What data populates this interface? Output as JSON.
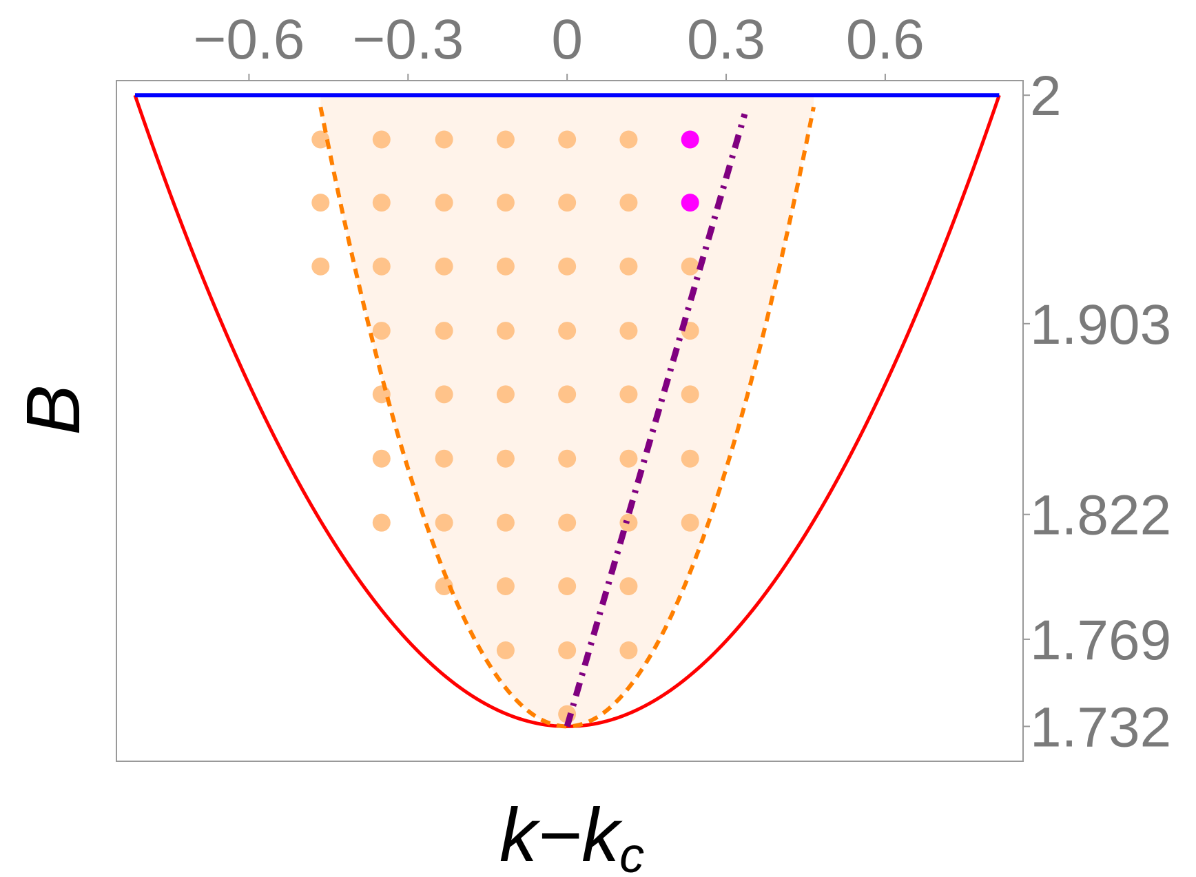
{
  "chart_data": {
    "type": "scatter",
    "xlabel": "k−k",
    "xlabel_sub": "c",
    "ylabel": "B",
    "xlim": [
      -0.85,
      0.86
    ],
    "ylim": [
      1.7172,
      2.0062
    ],
    "x_ticks": [
      {
        "value": -0.6,
        "label": "−0.6"
      },
      {
        "value": -0.3,
        "label": "−0.3"
      },
      {
        "value": 0,
        "label": "0"
      },
      {
        "value": 0.3,
        "label": "0.3"
      },
      {
        "value": 0.6,
        "label": "0.6"
      }
    ],
    "y_ticks": [
      {
        "value": 2.0,
        "label": "2"
      },
      {
        "value": 1.903,
        "label": "1.903"
      },
      {
        "value": 1.822,
        "label": "1.822"
      },
      {
        "value": 1.769,
        "label": "1.769"
      },
      {
        "value": 1.732,
        "label": "1.732"
      }
    ],
    "x_axis_position": "top",
    "y_axis_position": "right",
    "grid": false,
    "curves": {
      "red_boundary": {
        "style": "solid",
        "color": "#ff0000",
        "vertex": [
          0,
          1.732
        ],
        "endpoints": [
          [
            -0.815,
            2.0
          ],
          [
            0.815,
            2.0
          ]
        ]
      },
      "blue_top": {
        "style": "solid",
        "color": "#0000ff",
        "y": 2.0,
        "x_range": [
          -0.815,
          0.815
        ]
      },
      "orange_dashed": {
        "style": "dashed",
        "color": "#ff7f00",
        "vertex": [
          0,
          1.732
        ],
        "endpoints": [
          [
            -0.465,
            1.995
          ],
          [
            0.465,
            1.995
          ]
        ]
      },
      "purple_dotdash": {
        "style": "dot-dash",
        "color": "#800080",
        "points": [
          [
            0,
            1.732
          ],
          [
            0.335,
            1.992
          ]
        ]
      }
    },
    "shaded_region": {
      "color": "#fff3ea",
      "bounded_by": "orange_dashed"
    },
    "points": {
      "color": "#ffc38a",
      "highlight_color": "#ff00ff",
      "rows": [
        {
          "y": 1.9812,
          "x": [
            -0.465,
            -0.35,
            -0.232,
            -0.116,
            0,
            0.116,
            0.232
          ]
        },
        {
          "y": 1.9544,
          "x": [
            -0.465,
            -0.35,
            -0.232,
            -0.116,
            0,
            0.116,
            0.232
          ]
        },
        {
          "y": 1.9273,
          "x": [
            -0.465,
            -0.35,
            -0.232,
            -0.116,
            0,
            0.116,
            0.232
          ]
        },
        {
          "y": 1.9,
          "x": [
            -0.35,
            -0.232,
            -0.116,
            0,
            0.116,
            0.232
          ]
        },
        {
          "y": 1.873,
          "x": [
            -0.35,
            -0.232,
            -0.116,
            0,
            0.116,
            0.232
          ]
        },
        {
          "y": 1.8457,
          "x": [
            -0.35,
            -0.232,
            -0.116,
            0,
            0.116,
            0.232
          ]
        },
        {
          "y": 1.8185,
          "x": [
            -0.35,
            -0.232,
            -0.116,
            0,
            0.116,
            0.232
          ]
        },
        {
          "y": 1.7915,
          "x": [
            -0.232,
            -0.116,
            0,
            0.116
          ]
        },
        {
          "y": 1.7643,
          "x": [
            -0.116,
            0,
            0.116
          ]
        },
        {
          "y": 1.7372,
          "x": [
            0
          ]
        }
      ],
      "highlighted": [
        [
          0.232,
          1.9812
        ],
        [
          0.232,
          1.9544
        ]
      ]
    }
  }
}
